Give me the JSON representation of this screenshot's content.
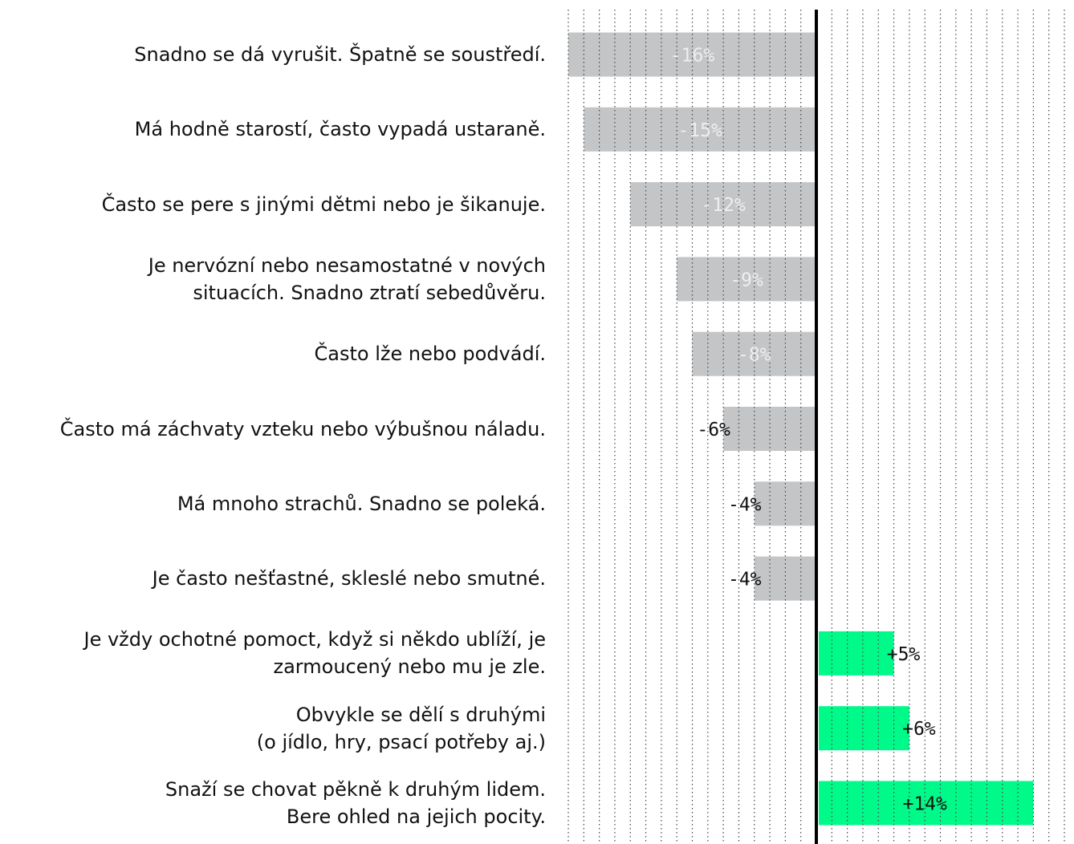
{
  "chart_data": {
    "type": "bar",
    "orientation": "horizontal",
    "categories": [
      "Snadno se dá vyrušit. Špatně se soustředí.",
      "Má hodně starostí, často vypadá ustaraně.",
      "Často se pere s jinými dětmi nebo je šikanuje.",
      "Je nervózní nebo nesamostatné v nových\nsituacích. Snadno ztratí sebedůvěru.",
      "Často lže nebo podvádí.",
      "Často má záchvaty vzteku nebo výbušnou náladu.",
      "Má mnoho strachů. Snadno se poleká.",
      "Je často nešťastné, skleslé nebo smutné.",
      "Je vždy ochotné pomoct, když si někdo ublíží, je\nzarmoucený nebo mu je zle.",
      "Obvykle se dělí s druhými\n(o jídlo, hry, psací potřeby aj.)",
      "Snaží se chovat pěkně k druhým lidem.\nBere ohled na jejich pocity."
    ],
    "values": [
      -16,
      -15,
      -12,
      -9,
      -8,
      -6,
      -4,
      -4,
      5,
      6,
      14
    ],
    "value_labels": [
      "-16%",
      "-15%",
      "-12%",
      "-9%",
      "-8%",
      "-6%",
      "-4%",
      "-4%",
      "+5%",
      "+6%",
      "+14%"
    ],
    "colors": [
      "#c4c5c7",
      "#c4c5c7",
      "#c4c5c7",
      "#c4c5c7",
      "#c4c5c7",
      "#c4c5c7",
      "#c4c5c7",
      "#c4c5c7",
      "#00fa8a",
      "#00fa8a",
      "#00fa8a"
    ],
    "xlim": [
      -16,
      16
    ],
    "xticks": [
      -16,
      -15,
      -14,
      -13,
      -12,
      -11,
      -10,
      -9,
      -8,
      -7,
      -6,
      -5,
      -4,
      -3,
      -2,
      -1,
      0,
      1,
      2,
      3,
      4,
      5,
      6,
      7,
      8,
      9,
      10,
      11,
      12,
      13,
      14,
      15,
      16
    ],
    "grid": true
  }
}
